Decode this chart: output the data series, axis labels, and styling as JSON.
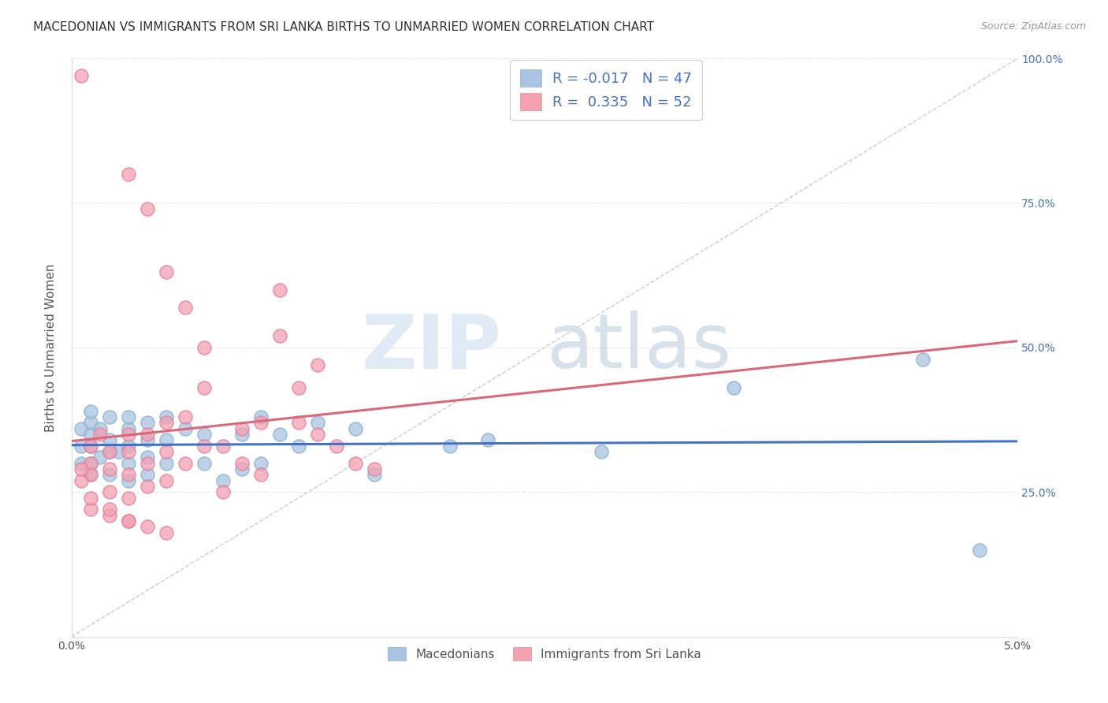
{
  "title": "MACEDONIAN VS IMMIGRANTS FROM SRI LANKA BIRTHS TO UNMARRIED WOMEN CORRELATION CHART",
  "source": "Source: ZipAtlas.com",
  "ylabel": "Births to Unmarried Women",
  "xlim": [
    0.0,
    0.05
  ],
  "ylim": [
    0.0,
    1.0
  ],
  "x_ticks": [
    0.0,
    0.01,
    0.02,
    0.03,
    0.04,
    0.05
  ],
  "x_tick_labels": [
    "0.0%",
    "",
    "",
    "",
    "",
    "5.0%"
  ],
  "y_ticks": [
    0.0,
    0.25,
    0.5,
    0.75,
    1.0
  ],
  "y_tick_labels": [
    "",
    "25.0%",
    "50.0%",
    "75.0%",
    "100.0%"
  ],
  "macedonian_R": -0.017,
  "macedonian_N": 47,
  "srilanka_R": 0.335,
  "srilanka_N": 52,
  "macedonian_color": "#a8c4e0",
  "srilanka_color": "#f4a0b0",
  "macedonian_line_color": "#4472c4",
  "srilanka_line_color": "#d9687a",
  "diagonal_color": "#cccccc",
  "grid_color": "#e8e8e8",
  "macedonian_x": [
    0.0005,
    0.0005,
    0.0005,
    0.001,
    0.001,
    0.001,
    0.001,
    0.001,
    0.001,
    0.0015,
    0.0015,
    0.002,
    0.002,
    0.002,
    0.002,
    0.0025,
    0.003,
    0.003,
    0.003,
    0.003,
    0.003,
    0.004,
    0.004,
    0.004,
    0.004,
    0.005,
    0.005,
    0.005,
    0.006,
    0.007,
    0.007,
    0.008,
    0.009,
    0.009,
    0.01,
    0.01,
    0.011,
    0.012,
    0.013,
    0.015,
    0.016,
    0.02,
    0.022,
    0.028,
    0.035,
    0.045,
    0.048
  ],
  "macedonian_y": [
    0.3,
    0.33,
    0.36,
    0.28,
    0.3,
    0.33,
    0.35,
    0.37,
    0.39,
    0.31,
    0.36,
    0.28,
    0.32,
    0.34,
    0.38,
    0.32,
    0.27,
    0.3,
    0.33,
    0.36,
    0.38,
    0.28,
    0.31,
    0.34,
    0.37,
    0.3,
    0.34,
    0.38,
    0.36,
    0.3,
    0.35,
    0.27,
    0.29,
    0.35,
    0.3,
    0.38,
    0.35,
    0.33,
    0.37,
    0.36,
    0.28,
    0.33,
    0.34,
    0.32,
    0.43,
    0.48,
    0.15
  ],
  "srilanka_x": [
    0.0005,
    0.001,
    0.001,
    0.001,
    0.0015,
    0.002,
    0.002,
    0.002,
    0.003,
    0.003,
    0.003,
    0.003,
    0.004,
    0.004,
    0.004,
    0.005,
    0.005,
    0.005,
    0.006,
    0.006,
    0.007,
    0.007,
    0.008,
    0.008,
    0.009,
    0.009,
    0.01,
    0.01,
    0.011,
    0.011,
    0.012,
    0.012,
    0.013,
    0.013,
    0.014,
    0.015,
    0.016,
    0.003,
    0.004,
    0.005,
    0.006,
    0.007,
    0.0005,
    0.001,
    0.002,
    0.003,
    0.0005,
    0.001,
    0.002,
    0.003,
    0.004,
    0.005
  ],
  "srilanka_y": [
    0.97,
    0.3,
    0.33,
    0.28,
    0.35,
    0.25,
    0.29,
    0.32,
    0.24,
    0.28,
    0.32,
    0.35,
    0.26,
    0.3,
    0.35,
    0.27,
    0.32,
    0.37,
    0.3,
    0.38,
    0.33,
    0.43,
    0.25,
    0.33,
    0.3,
    0.36,
    0.28,
    0.37,
    0.52,
    0.6,
    0.37,
    0.43,
    0.35,
    0.47,
    0.33,
    0.3,
    0.29,
    0.8,
    0.74,
    0.63,
    0.57,
    0.5,
    0.27,
    0.22,
    0.21,
    0.2,
    0.29,
    0.24,
    0.22,
    0.2,
    0.19,
    0.18
  ]
}
